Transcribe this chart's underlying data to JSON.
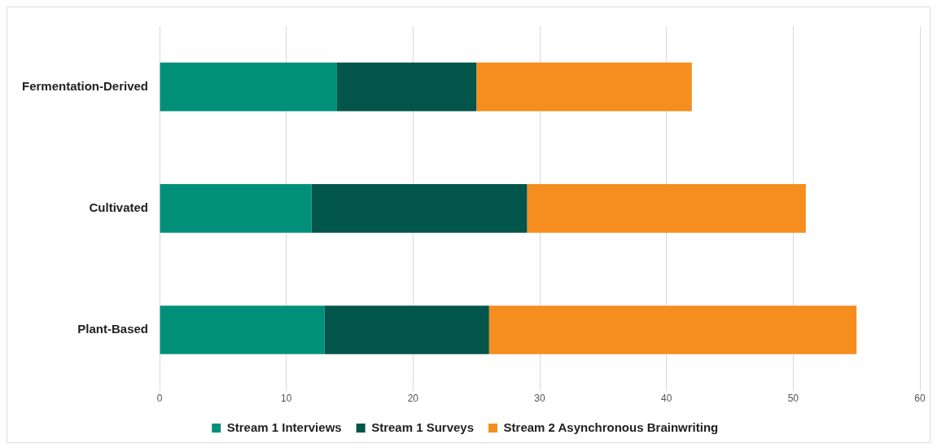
{
  "chart_data": {
    "type": "bar",
    "orientation": "horizontal",
    "stacked": true,
    "categories": [
      "Fermentation-Derived",
      "Cultivated",
      "Plant-Based"
    ],
    "series": [
      {
        "name": "Stream 1 Interviews",
        "color": "#00907a",
        "values": [
          14,
          12,
          13
        ]
      },
      {
        "name": "Stream 1 Surveys",
        "color": "#02554a",
        "values": [
          11,
          17,
          13
        ]
      },
      {
        "name": "Stream 2 Asynchronous Brainwriting",
        "color": "#f58d1f",
        "values": [
          17,
          22,
          29
        ]
      }
    ],
    "xlim": [
      0,
      60
    ],
    "xticks": [
      0,
      10,
      20,
      30,
      40,
      50,
      60
    ],
    "grid": "x",
    "legend": "bottom"
  }
}
